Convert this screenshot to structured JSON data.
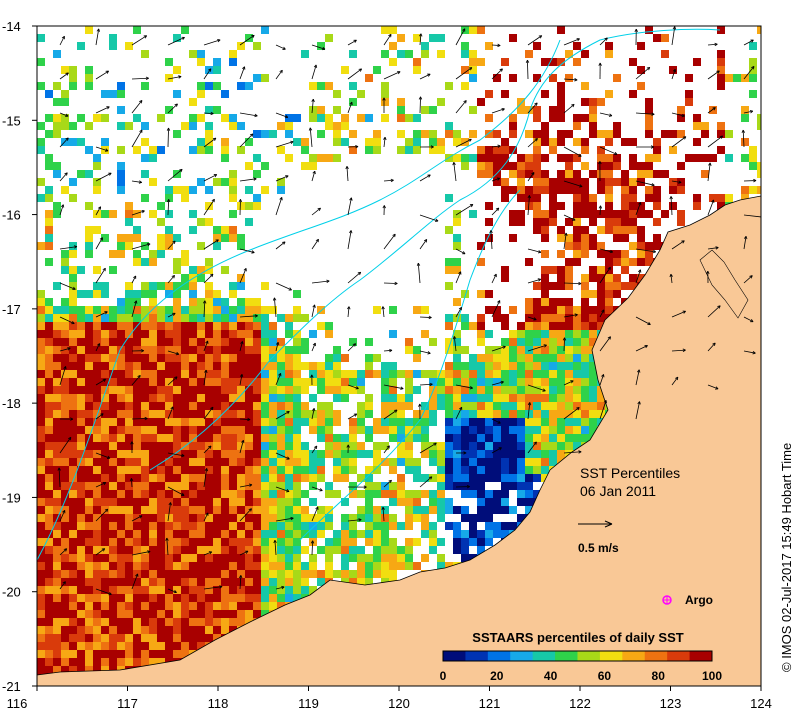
{
  "map": {
    "title": "SST Percentiles",
    "date": "06 Jan 2011",
    "vector_scale_label": "0.5 m/s",
    "argo_label": "Argo",
    "credit": "© IMOS 02-Jul-2017 15:49 Hobart Time",
    "land_color": "#f9c896",
    "x_axis": {
      "ticks": [
        "116",
        "117",
        "118",
        "119",
        "120",
        "121",
        "122",
        "123",
        "124"
      ],
      "range": [
        116,
        124
      ]
    },
    "y_axis": {
      "ticks": [
        "-14",
        "-15",
        "-16",
        "-17",
        "-18",
        "-19",
        "-20",
        "-21"
      ],
      "range": [
        -21,
        -14
      ]
    }
  },
  "colorbar": {
    "title": "SSTAARS percentiles of daily SST",
    "ticks": [
      "0",
      "20",
      "40",
      "60",
      "80",
      "100"
    ],
    "colors": [
      "#000d7a",
      "#0033b3",
      "#0073e6",
      "#16a9e8",
      "#16c8a8",
      "#2fd24a",
      "#a8d918",
      "#f1de10",
      "#f7a814",
      "#ee7211",
      "#d93b0b",
      "#a80000"
    ]
  }
}
